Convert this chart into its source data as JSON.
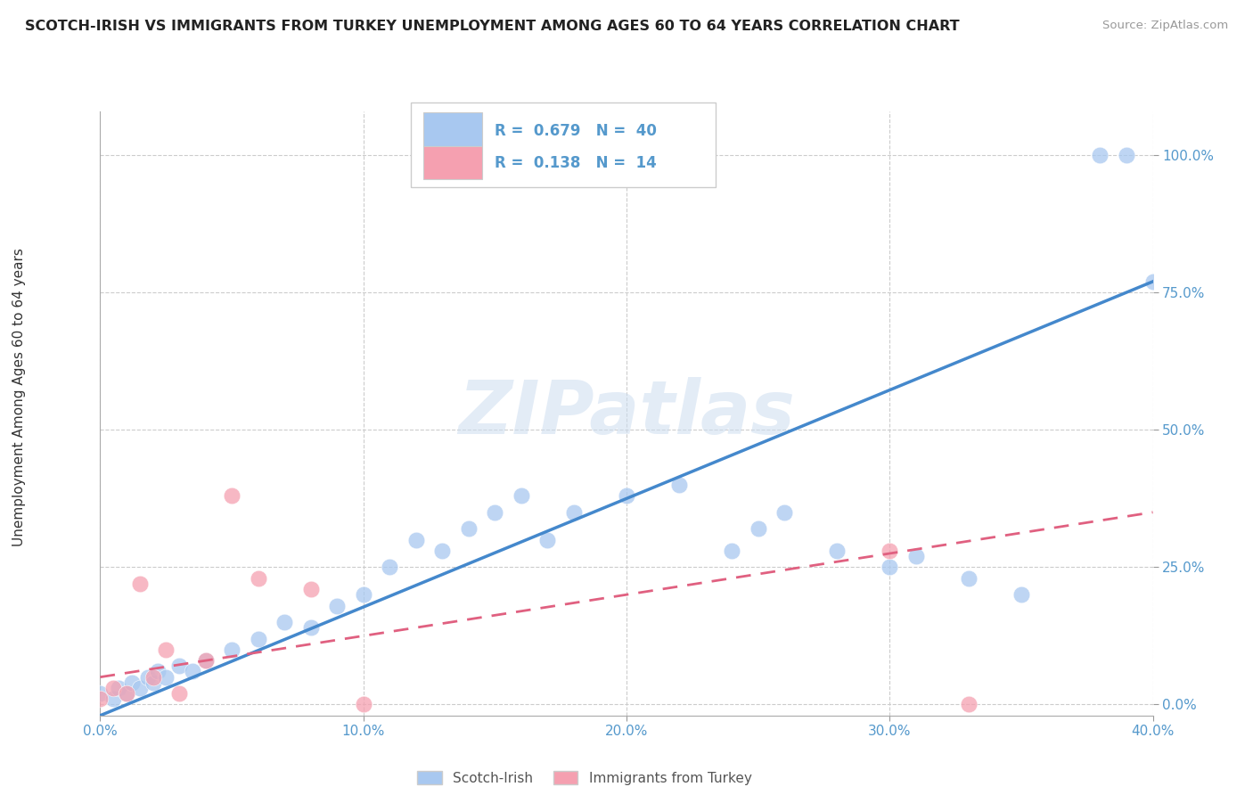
{
  "title": "SCOTCH-IRISH VS IMMIGRANTS FROM TURKEY UNEMPLOYMENT AMONG AGES 60 TO 64 YEARS CORRELATION CHART",
  "source": "Source: ZipAtlas.com",
  "ylabel": "Unemployment Among Ages 60 to 64 years",
  "xlim": [
    0.0,
    0.4
  ],
  "ylim": [
    -0.02,
    1.08
  ],
  "ytick_vals": [
    0.0,
    0.25,
    0.5,
    0.75,
    1.0
  ],
  "ytick_labels": [
    "0.0%",
    "25.0%",
    "50.0%",
    "75.0%",
    "100.0%"
  ],
  "xtick_vals": [
    0.0,
    0.1,
    0.2,
    0.3,
    0.4
  ],
  "xtick_labels": [
    "0.0%",
    "10.0%",
    "20.0%",
    "30.0%",
    "40.0%"
  ],
  "scotch_irish_R": 0.679,
  "scotch_irish_N": 40,
  "turkey_R": 0.138,
  "turkey_N": 14,
  "scotch_irish_color": "#a8c8f0",
  "turkey_color": "#f5a0b0",
  "scotch_irish_line_color": "#4488cc",
  "turkey_line_color": "#e06080",
  "tick_color": "#5599cc",
  "watermark_text": "ZIPatlas",
  "background_color": "#ffffff",
  "grid_color": "#cccccc",
  "scotch_irish_x": [
    0.0,
    0.005,
    0.007,
    0.01,
    0.012,
    0.015,
    0.018,
    0.02,
    0.022,
    0.025,
    0.03,
    0.035,
    0.04,
    0.05,
    0.06,
    0.07,
    0.08,
    0.09,
    0.1,
    0.11,
    0.12,
    0.13,
    0.14,
    0.15,
    0.16,
    0.17,
    0.18,
    0.2,
    0.22,
    0.24,
    0.25,
    0.26,
    0.28,
    0.3,
    0.31,
    0.33,
    0.35,
    0.38,
    0.39,
    0.4
  ],
  "scotch_irish_y": [
    0.02,
    0.01,
    0.03,
    0.02,
    0.04,
    0.03,
    0.05,
    0.04,
    0.06,
    0.05,
    0.07,
    0.06,
    0.08,
    0.1,
    0.12,
    0.15,
    0.14,
    0.18,
    0.2,
    0.25,
    0.3,
    0.28,
    0.32,
    0.35,
    0.38,
    0.3,
    0.35,
    0.38,
    0.4,
    0.28,
    0.32,
    0.35,
    0.28,
    0.25,
    0.27,
    0.23,
    0.2,
    1.0,
    1.0,
    0.77
  ],
  "turkey_x": [
    0.0,
    0.005,
    0.01,
    0.015,
    0.02,
    0.025,
    0.03,
    0.04,
    0.05,
    0.06,
    0.08,
    0.1,
    0.3,
    0.33
  ],
  "turkey_y": [
    0.01,
    0.03,
    0.02,
    0.22,
    0.05,
    0.1,
    0.02,
    0.08,
    0.38,
    0.23,
    0.21,
    0.0,
    0.28,
    0.0
  ],
  "si_line_x0": 0.0,
  "si_line_y0": -0.02,
  "si_line_x1": 0.4,
  "si_line_y1": 0.77,
  "tk_line_x0": 0.0,
  "tk_line_y0": 0.05,
  "tk_line_x1": 0.4,
  "tk_line_y1": 0.35,
  "legend_label_si": "Scotch-Irish",
  "legend_label_tk": "Immigrants from Turkey"
}
